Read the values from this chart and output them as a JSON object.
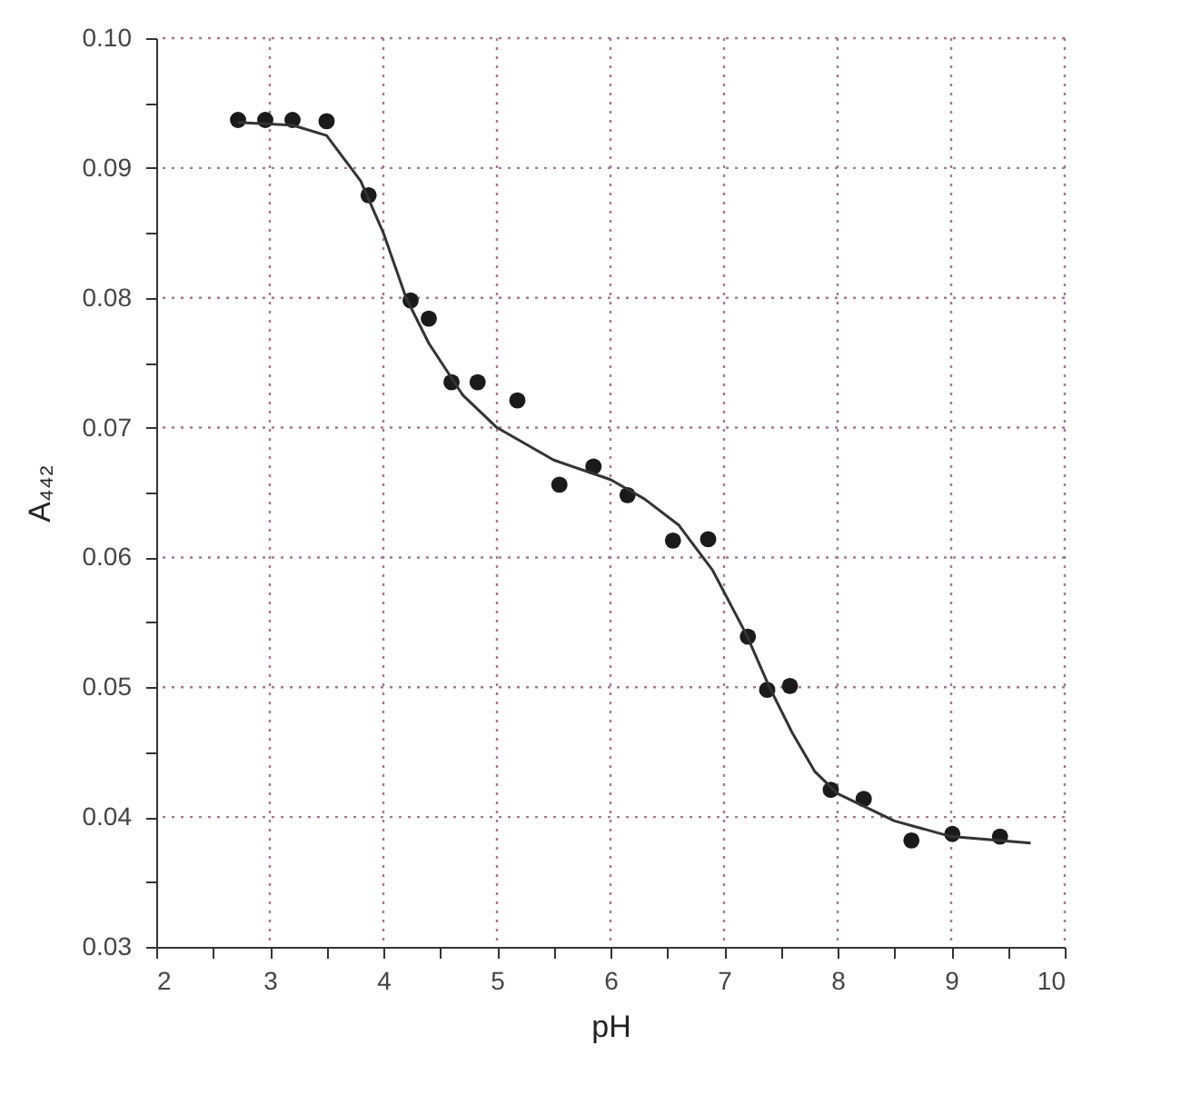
{
  "chart_data": {
    "type": "scatter",
    "xlabel": "pH",
    "ylabel": "A₄₄₂",
    "xlim": [
      2,
      10
    ],
    "ylim": [
      0.03,
      0.1
    ],
    "xticks": [
      2,
      {
        "value": 2.5,
        "label": null
      },
      3,
      {
        "value": 3.5,
        "label": null
      },
      4,
      {
        "value": 4.5,
        "label": null
      },
      5,
      {
        "value": 5.5,
        "label": null
      },
      6,
      {
        "value": 6.5,
        "label": null
      },
      7,
      {
        "value": 7.5,
        "label": null
      },
      8,
      {
        "value": 8.5,
        "label": null
      },
      9,
      {
        "value": 9.5,
        "label": null
      },
      10
    ],
    "yticks": [
      {
        "value": 0.03,
        "label": "0.03"
      },
      {
        "value": 0.035,
        "label": null
      },
      {
        "value": 0.04,
        "label": "0.04"
      },
      {
        "value": 0.045,
        "label": null
      },
      {
        "value": 0.05,
        "label": "0.05"
      },
      {
        "value": 0.055,
        "label": null
      },
      {
        "value": 0.06,
        "label": "0.06"
      },
      {
        "value": 0.065,
        "label": null
      },
      {
        "value": 0.07,
        "label": "0.07"
      },
      {
        "value": 0.075,
        "label": null
      },
      {
        "value": 0.08,
        "label": "0.08"
      },
      {
        "value": 0.085,
        "label": null
      },
      {
        "value": 0.09,
        "label": "0.09"
      },
      {
        "value": 0.095,
        "label": null
      },
      {
        "value": 0.1,
        "label": "0.10"
      }
    ],
    "grid": true,
    "marker": "circle",
    "series": [
      {
        "color": "#1a1a1a",
        "x": [
          2.72,
          2.96,
          3.2,
          3.5,
          3.87,
          4.24,
          4.4,
          4.6,
          4.83,
          5.18,
          5.55,
          5.85,
          6.15,
          6.55,
          6.86,
          7.21,
          7.38,
          7.58,
          7.94,
          8.23,
          8.65,
          9.01,
          9.43
        ],
        "values": [
          0.0937,
          0.0937,
          0.0937,
          0.0936,
          0.0879,
          0.0798,
          0.0784,
          0.0735,
          0.0735,
          0.0721,
          0.0656,
          0.067,
          0.0648,
          0.0613,
          0.0614,
          0.0539,
          0.0498,
          0.0501,
          0.0421,
          0.0414,
          0.0382,
          0.0387,
          0.0385
        ]
      },
      {
        "type": "line",
        "color": "#333333",
        "marker": "none",
        "line_style": "solid",
        "x": [
          2.72,
          3.2,
          3.5,
          3.8,
          4.0,
          4.2,
          4.4,
          4.7,
          5.0,
          5.5,
          6.0,
          6.3,
          6.6,
          6.9,
          7.2,
          7.4,
          7.6,
          7.8,
          8.0,
          8.5,
          9.0,
          9.7
        ],
        "values": [
          0.0935,
          0.0933,
          0.0925,
          0.089,
          0.085,
          0.08,
          0.0765,
          0.0725,
          0.07,
          0.0675,
          0.066,
          0.0645,
          0.0625,
          0.059,
          0.054,
          0.05,
          0.0465,
          0.0435,
          0.0418,
          0.0397,
          0.0385,
          0.038
        ]
      }
    ]
  }
}
